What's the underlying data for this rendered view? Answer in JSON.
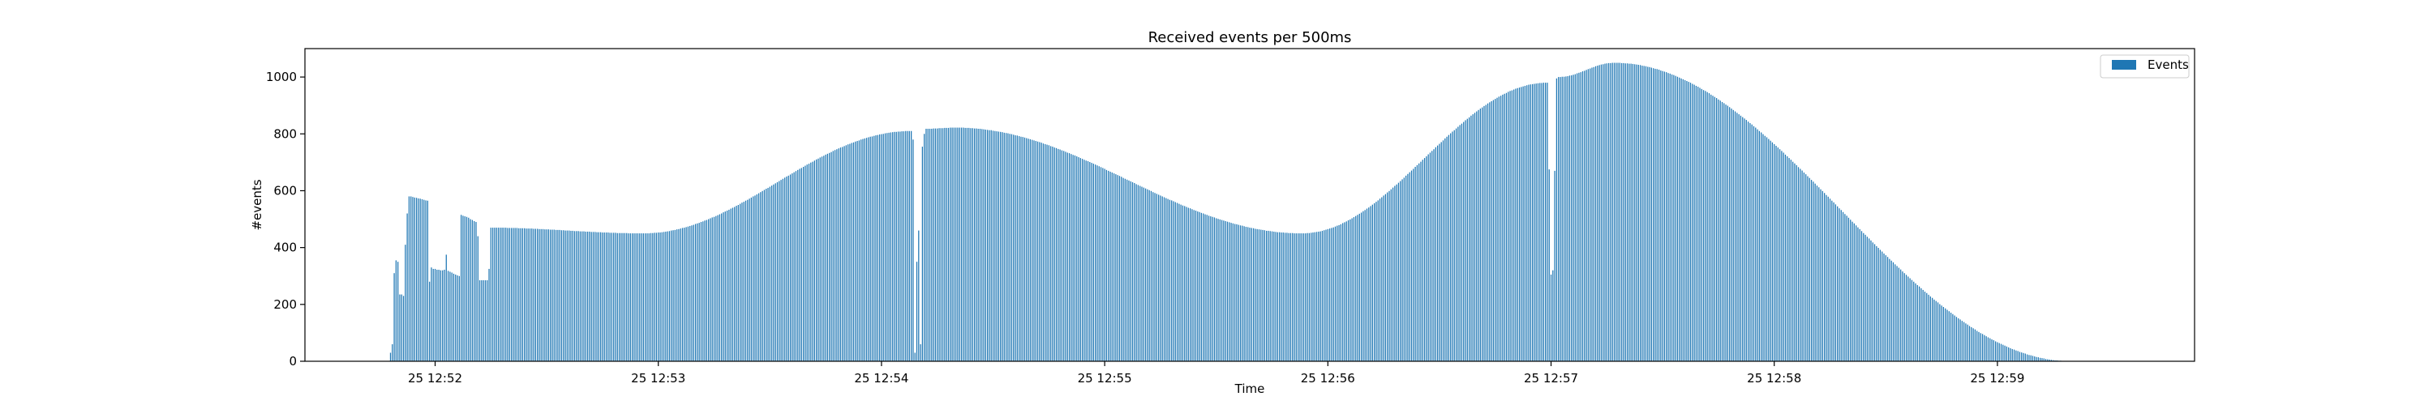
{
  "chart_data": {
    "type": "bar",
    "title": "Received events per 500ms",
    "xlabel": "Time",
    "ylabel": "#events",
    "ylim": [
      0,
      1100
    ],
    "yticks": [
      0,
      200,
      400,
      600,
      800,
      1000
    ],
    "xlim": [
      "12:51:25",
      "12:59:53"
    ],
    "xtick_labels": [
      "25 12:52",
      "25 12:53",
      "25 12:54",
      "25 12:55",
      "25 12:56",
      "25 12:57",
      "25 12:58",
      "25 12:59"
    ],
    "xtick_times": [
      "12:52:00",
      "12:53:00",
      "12:54:00",
      "12:55:00",
      "12:56:00",
      "12:57:00",
      "12:58:00",
      "12:59:00"
    ],
    "bar_interval": "500ms",
    "legend": {
      "label": "Events",
      "position": "top-right"
    },
    "colors": {
      "bars": "#1f77b4"
    },
    "series": [
      {
        "name": "Events",
        "color": "#1f77b4",
        "points": [
          [
            "12:51:48.0",
            30
          ],
          [
            "12:51:48.5",
            60
          ],
          [
            "12:51:49.0",
            310
          ],
          [
            "12:51:49.5",
            355
          ],
          [
            "12:51:50.0",
            350
          ],
          [
            "12:51:50.5",
            235
          ],
          [
            "12:51:51.0",
            235
          ],
          [
            "12:51:51.5",
            230
          ],
          [
            "12:51:52.0",
            410
          ],
          [
            "12:51:52.5",
            520
          ],
          [
            "12:51:53.0",
            580
          ],
          [
            "12:51:53.5",
            580
          ],
          [
            "12:51:54.0",
            578
          ],
          [
            "12:51:54.5",
            576
          ],
          [
            "12:51:55.0",
            575
          ],
          [
            "12:51:55.5",
            573
          ],
          [
            "12:51:56.0",
            572
          ],
          [
            "12:51:56.5",
            570
          ],
          [
            "12:51:57.0",
            568
          ],
          [
            "12:51:57.5",
            566
          ],
          [
            "12:51:58.0",
            565
          ],
          [
            "12:51:58.5",
            280
          ],
          [
            "12:51:59.0",
            330
          ],
          [
            "12:51:59.5",
            325
          ],
          [
            "12:52:00.0",
            325
          ],
          [
            "12:52:00.5",
            322
          ],
          [
            "12:52:01.0",
            322
          ],
          [
            "12:52:01.5",
            320
          ],
          [
            "12:52:02.0",
            320
          ],
          [
            "12:52:02.5",
            322
          ],
          [
            "12:52:03.0",
            375
          ],
          [
            "12:52:03.5",
            318
          ],
          [
            "12:52:04.0",
            315
          ],
          [
            "12:52:04.5",
            312
          ],
          [
            "12:52:05.0",
            308
          ],
          [
            "12:52:05.5",
            305
          ],
          [
            "12:52:06.0",
            302
          ],
          [
            "12:52:06.5",
            300
          ],
          [
            "12:52:07.0",
            515
          ],
          [
            "12:52:07.5",
            512
          ],
          [
            "12:52:08.0",
            510
          ],
          [
            "12:52:08.5",
            508
          ],
          [
            "12:52:09.0",
            505
          ],
          [
            "12:52:09.5",
            500
          ],
          [
            "12:52:10.0",
            497
          ],
          [
            "12:52:10.5",
            493
          ],
          [
            "12:52:11.0",
            490
          ],
          [
            "12:52:11.5",
            440
          ],
          [
            "12:52:12.0",
            285
          ],
          [
            "12:52:12.5",
            285
          ],
          [
            "12:52:13.0",
            285
          ],
          [
            "12:52:13.5",
            285
          ],
          [
            "12:52:14.0",
            285
          ],
          [
            "12:52:14.5",
            325
          ],
          [
            "12:52:15.0",
            470
          ],
          [
            "12:54:08.0",
            810
          ],
          [
            "12:54:08.5",
            780
          ],
          [
            "12:54:09.0",
            30
          ],
          [
            "12:54:09.5",
            350
          ],
          [
            "12:54:10.0",
            460
          ],
          [
            "12:54:10.5",
            60
          ],
          [
            "12:54:11.0",
            755
          ],
          [
            "12:54:11.5",
            800
          ],
          [
            "12:54:12.0",
            818
          ],
          [
            "12:56:59.0",
            980
          ],
          [
            "12:56:59.5",
            675
          ],
          [
            "12:57:00.0",
            305
          ],
          [
            "12:57:00.5",
            320
          ],
          [
            "12:57:01.0",
            670
          ],
          [
            "12:57:01.5",
            995
          ],
          [
            "12:57:02.0",
            1000
          ]
        ],
        "segments": [
          {
            "start": "12:52:15.0",
            "end": "12:52:56.0",
            "from": 470,
            "to": 450,
            "shape": "ease"
          },
          {
            "start": "12:52:56.0",
            "end": "12:54:08.0",
            "from": 450,
            "to": 810,
            "shape": "ease"
          },
          {
            "start": "12:54:12.0",
            "end": "12:54:20.0",
            "from": 818,
            "to": 822,
            "shape": "ease"
          },
          {
            "start": "12:54:20.0",
            "end": "12:55:53.0",
            "from": 822,
            "to": 450,
            "shape": "ease"
          },
          {
            "start": "12:55:53.0",
            "end": "12:56:59.0",
            "from": 450,
            "to": 980,
            "shape": "ease"
          },
          {
            "start": "12:57:02.0",
            "end": "12:57:17.0",
            "from": 1000,
            "to": 1050,
            "shape": "ease"
          },
          {
            "start": "12:57:17.0",
            "end": "12:59:20.0",
            "from": 1050,
            "to": 0,
            "shape": "ease"
          }
        ]
      }
    ]
  }
}
